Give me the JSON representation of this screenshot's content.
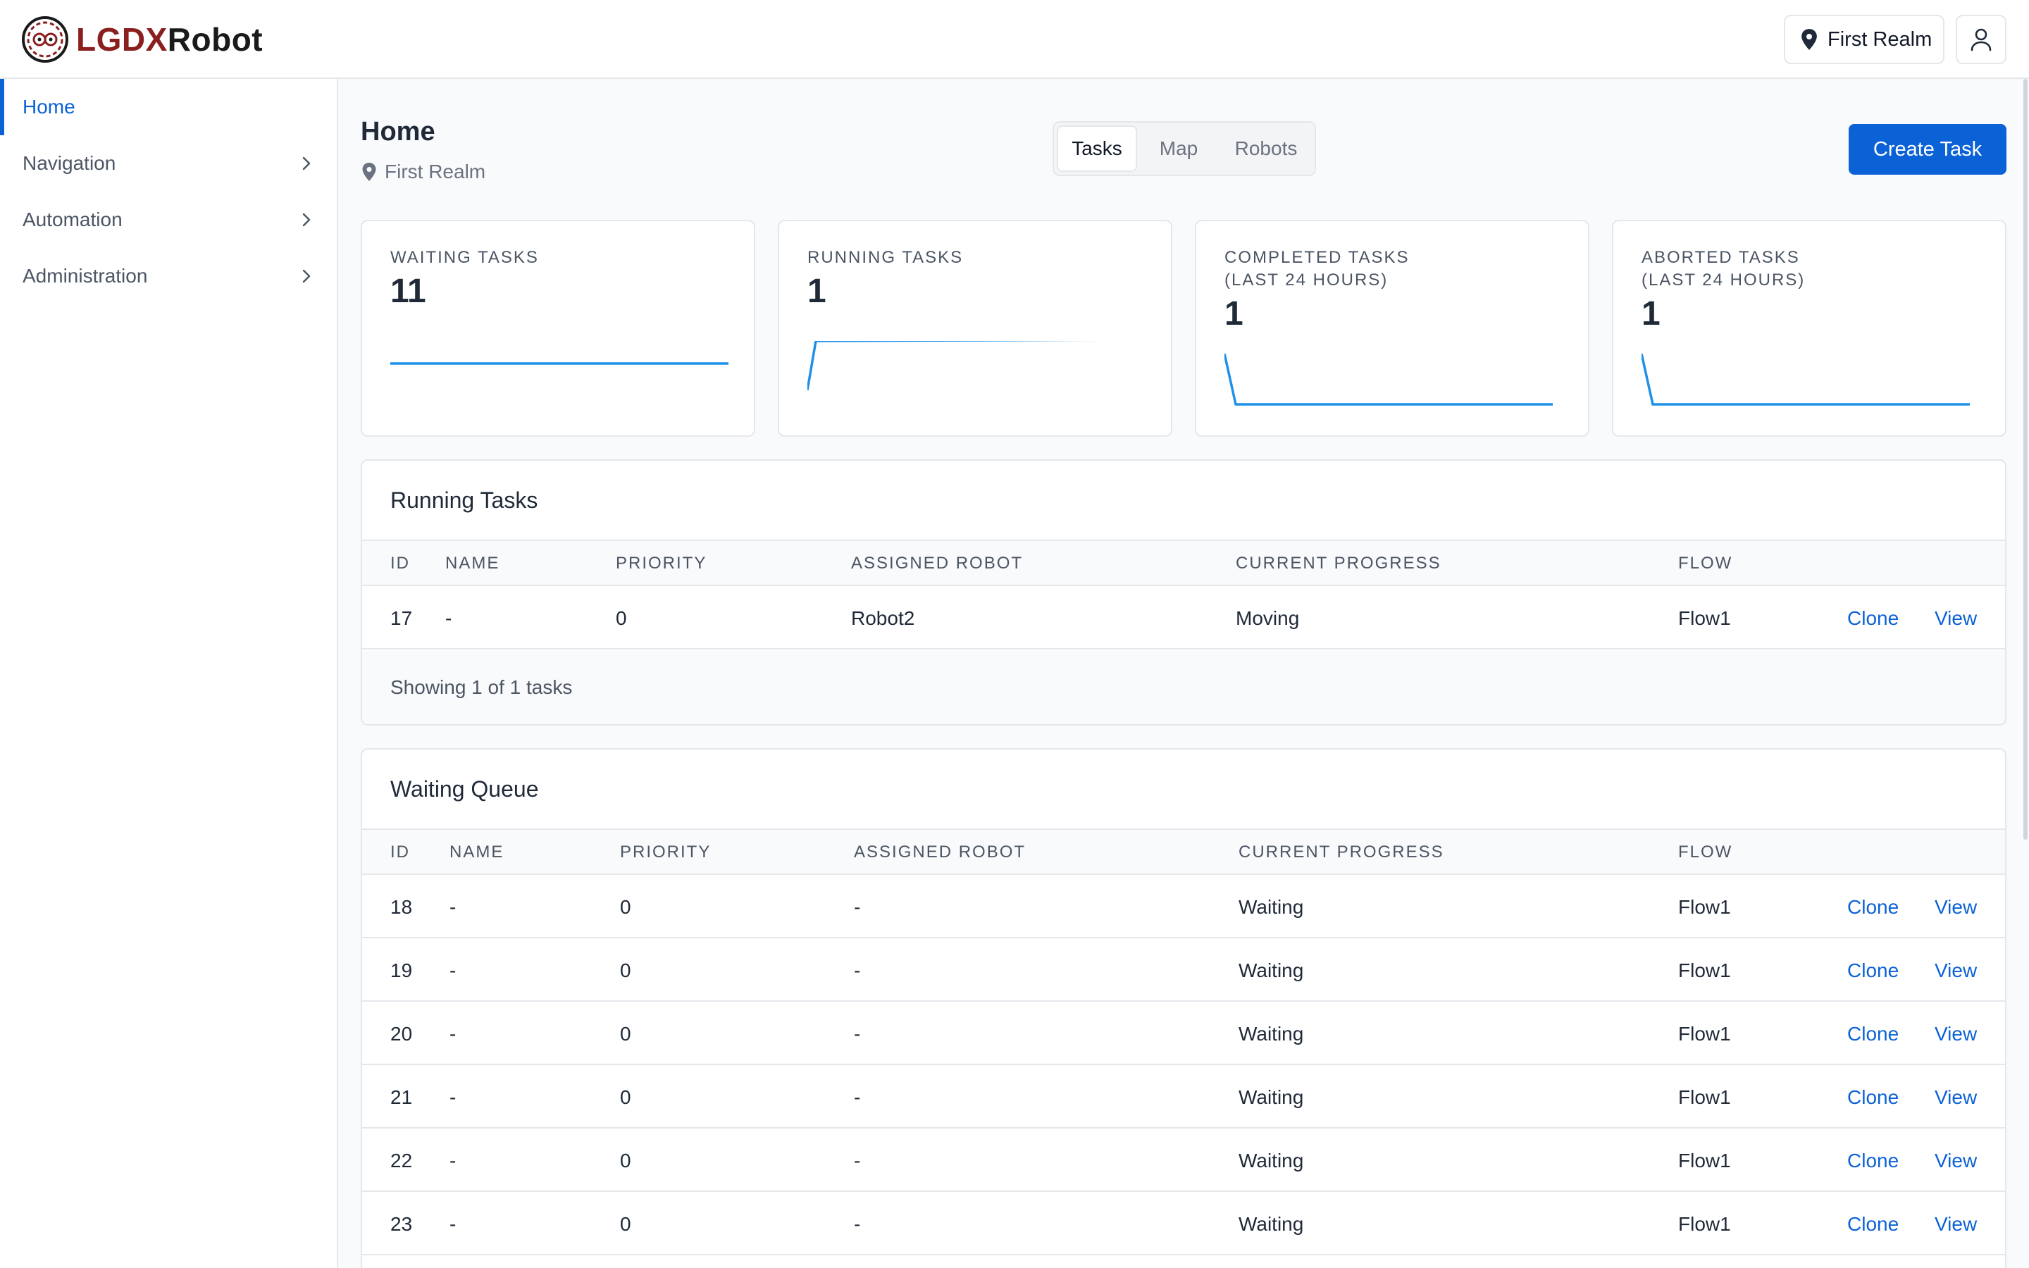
{
  "app": {
    "logo_part1": "LGDX",
    "logo_part2": "Robot"
  },
  "header": {
    "realm_label": "First Realm"
  },
  "sidebar": {
    "items": [
      {
        "label": "Home",
        "active": true
      },
      {
        "label": "Navigation"
      },
      {
        "label": "Automation"
      },
      {
        "label": "Administration"
      }
    ]
  },
  "page": {
    "title": "Home",
    "realm": "First Realm",
    "tabs": [
      {
        "label": "Tasks",
        "active": true
      },
      {
        "label": "Map"
      },
      {
        "label": "Robots"
      }
    ],
    "create_button": "Create Task"
  },
  "stats": [
    {
      "label": "WAITING TASKS",
      "value": "11"
    },
    {
      "label": "RUNNING TASKS",
      "value": "1"
    },
    {
      "label": "COMPLETED TASKS (LAST 24 HOURS)",
      "value": "1"
    },
    {
      "label": "ABORTED TASKS (LAST 24 HOURS)",
      "value": "1"
    }
  ],
  "running_tasks": {
    "title": "Running Tasks",
    "columns": [
      "ID",
      "NAME",
      "PRIORITY",
      "ASSIGNED ROBOT",
      "CURRENT PROGRESS",
      "FLOW"
    ],
    "rows": [
      {
        "id": "17",
        "name": "-",
        "priority": "0",
        "robot": "Robot2",
        "progress": "Moving",
        "flow": "Flow1",
        "clone": "Clone",
        "view": "View"
      }
    ],
    "footer": "Showing 1 of 1 tasks"
  },
  "waiting_queue": {
    "title": "Waiting Queue",
    "columns": [
      "ID",
      "NAME",
      "PRIORITY",
      "ASSIGNED ROBOT",
      "CURRENT PROGRESS",
      "FLOW"
    ],
    "rows": [
      {
        "id": "18",
        "name": "-",
        "priority": "0",
        "robot": "-",
        "progress": "Waiting",
        "flow": "Flow1",
        "clone": "Clone",
        "view": "View"
      },
      {
        "id": "19",
        "name": "-",
        "priority": "0",
        "robot": "-",
        "progress": "Waiting",
        "flow": "Flow1",
        "clone": "Clone",
        "view": "View"
      },
      {
        "id": "20",
        "name": "-",
        "priority": "0",
        "robot": "-",
        "progress": "Waiting",
        "flow": "Flow1",
        "clone": "Clone",
        "view": "View"
      },
      {
        "id": "21",
        "name": "-",
        "priority": "0",
        "robot": "-",
        "progress": "Waiting",
        "flow": "Flow1",
        "clone": "Clone",
        "view": "View"
      },
      {
        "id": "22",
        "name": "-",
        "priority": "0",
        "robot": "-",
        "progress": "Waiting",
        "flow": "Flow1",
        "clone": "Clone",
        "view": "View"
      },
      {
        "id": "23",
        "name": "-",
        "priority": "0",
        "robot": "-",
        "progress": "Waiting",
        "flow": "Flow1",
        "clone": "Clone",
        "view": "View"
      }
    ]
  },
  "colors": {
    "accent": "#0b62d6",
    "spark": "#1e90e8",
    "logo_red": "#8b1e1e"
  }
}
